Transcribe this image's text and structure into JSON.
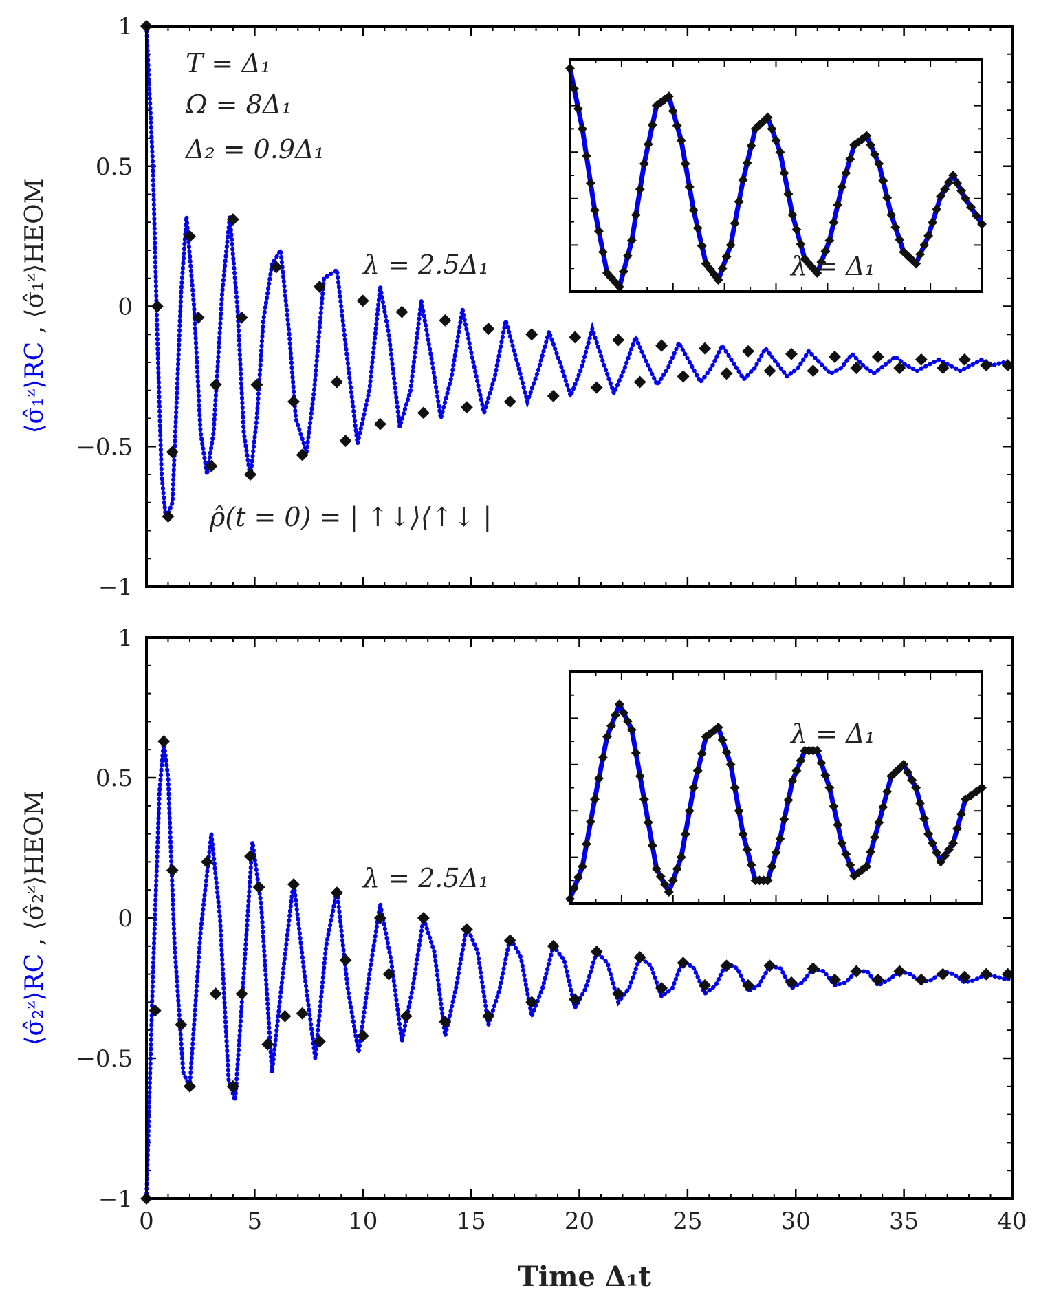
{
  "figure": {
    "xlabel": "Time Δ₁t",
    "colors": {
      "rc": "#0000ee",
      "heom": "#111111",
      "axes": "#000000"
    }
  },
  "chart_data": [
    {
      "type": "line",
      "panel": "top",
      "ylabel_rc": "⟨σ̂₁ᶻ⟩RC",
      "ylabel_sep": " , ",
      "ylabel_heom": "⟨σ̂₁ᶻ⟩HEOM",
      "xlim": [
        0,
        40
      ],
      "ylim": [
        -1,
        1
      ],
      "xticks": [
        0,
        5,
        10,
        15,
        20,
        25,
        30,
        35,
        40
      ],
      "yticks": [
        -1,
        -0.5,
        0,
        0.5,
        1
      ],
      "ytick_labels": [
        "−1",
        "−0.5",
        "0",
        "0.5",
        "1"
      ],
      "annotations": [
        "T = Δ₁",
        "Ω = 8Δ₁",
        "Δ₂ = 0.9Δ₁",
        "λ = 2.5Δ₁",
        "ρ̂(t = 0) = | ↑↓⟩⟨↑↓ |"
      ],
      "series": [
        {
          "style": "dotted-blue",
          "x": [
            0,
            0.3,
            0.5,
            0.7,
            0.9,
            1.2,
            1.6,
            1.85,
            2.2,
            2.5,
            2.8,
            3.1,
            3.5,
            3.85,
            4.2,
            4.5,
            4.8,
            5.1,
            5.4,
            5.8,
            6.2,
            6.6,
            6.9,
            7.4,
            7.75,
            8.2,
            8.8,
            9.3,
            9.75,
            10.3,
            10.8,
            11.2,
            11.7,
            12.2,
            12.7,
            13.2,
            13.6,
            14.1,
            14.6,
            15.1,
            15.6,
            16.1,
            16.6,
            17.2,
            17.6,
            18.1,
            18.6,
            19.1,
            19.6,
            20.1,
            20.6,
            21.1,
            21.6,
            22.1,
            22.6,
            23.1,
            23.6,
            24.1,
            24.6,
            25.1,
            25.6,
            26.1,
            26.6,
            27.1,
            27.6,
            28.1,
            28.6,
            29.1,
            29.6,
            30.1,
            30.6,
            31.1,
            31.6,
            32.1,
            32.6,
            33.1,
            33.6,
            34.1,
            34.6,
            35.1,
            35.6,
            36.1,
            36.6,
            37.1,
            37.6,
            38.1,
            38.6,
            39.1,
            39.6,
            40
          ],
          "y": [
            1,
            0.5,
            -0.1,
            -0.6,
            -0.76,
            -0.7,
            0.05,
            0.32,
            0.0,
            -0.45,
            -0.6,
            -0.45,
            0.05,
            0.32,
            0.0,
            -0.45,
            -0.61,
            -0.4,
            -0.05,
            0.15,
            0.2,
            -0.1,
            -0.4,
            -0.52,
            -0.3,
            0.1,
            0.13,
            -0.2,
            -0.49,
            -0.3,
            0.07,
            -0.1,
            -0.43,
            -0.3,
            0.02,
            -0.2,
            -0.4,
            -0.25,
            -0.01,
            -0.2,
            -0.38,
            -0.25,
            -0.05,
            -0.22,
            -0.34,
            -0.23,
            -0.09,
            -0.2,
            -0.32,
            -0.22,
            -0.08,
            -0.2,
            -0.31,
            -0.22,
            -0.11,
            -0.2,
            -0.28,
            -0.22,
            -0.13,
            -0.2,
            -0.27,
            -0.22,
            -0.14,
            -0.2,
            -0.26,
            -0.22,
            -0.15,
            -0.2,
            -0.25,
            -0.22,
            -0.16,
            -0.2,
            -0.24,
            -0.22,
            -0.17,
            -0.21,
            -0.24,
            -0.21,
            -0.18,
            -0.21,
            -0.23,
            -0.21,
            -0.19,
            -0.21,
            -0.23,
            -0.21,
            -0.19,
            -0.21,
            -0.2,
            -0.21
          ]
        },
        {
          "style": "diamond-black",
          "x": [
            0,
            0.5,
            1.0,
            1.2,
            2.0,
            2.4,
            3.0,
            3.2,
            4.0,
            4.4,
            4.8,
            5.1,
            6.0,
            6.8,
            7.2,
            8.0,
            8.8,
            9.2,
            10.0,
            10.8,
            11.8,
            12.8,
            13.8,
            14.8,
            15.8,
            16.8,
            17.8,
            18.8,
            19.8,
            20.8,
            21.8,
            22.8,
            23.8,
            24.8,
            25.8,
            26.8,
            27.8,
            28.8,
            29.8,
            30.8,
            31.8,
            32.8,
            33.8,
            34.8,
            35.8,
            36.8,
            37.8,
            38.8,
            39.8
          ],
          "y": [
            1,
            0.0,
            -0.75,
            -0.52,
            0.25,
            -0.04,
            -0.57,
            -0.28,
            0.31,
            -0.04,
            -0.6,
            -0.28,
            0.14,
            -0.34,
            -0.53,
            0.07,
            -0.27,
            -0.48,
            0.02,
            -0.42,
            -0.02,
            -0.38,
            -0.05,
            -0.36,
            -0.08,
            -0.34,
            -0.1,
            -0.32,
            -0.11,
            -0.29,
            -0.12,
            -0.27,
            -0.14,
            -0.25,
            -0.15,
            -0.24,
            -0.16,
            -0.23,
            -0.17,
            -0.23,
            -0.18,
            -0.22,
            -0.18,
            -0.22,
            -0.19,
            -0.22,
            -0.19,
            -0.21,
            -0.21
          ]
        }
      ],
      "inset": {
        "label": "λ = Δ₁",
        "x": [
          0,
          0.03,
          0.06,
          0.09,
          0.12,
          0.15,
          0.18,
          0.21,
          0.24,
          0.27,
          0.3,
          0.33,
          0.36,
          0.39,
          0.42,
          0.45,
          0.48,
          0.51,
          0.54,
          0.57,
          0.6,
          0.63,
          0.66,
          0.69,
          0.72,
          0.75,
          0.78,
          0.81,
          0.84,
          0.87,
          0.9,
          0.93,
          0.96,
          1.0
        ],
        "y": [
          0.96,
          0.7,
          0.35,
          0.08,
          0.02,
          0.22,
          0.55,
          0.8,
          0.84,
          0.65,
          0.35,
          0.12,
          0.05,
          0.2,
          0.48,
          0.7,
          0.75,
          0.6,
          0.33,
          0.14,
          0.08,
          0.22,
          0.45,
          0.63,
          0.67,
          0.55,
          0.33,
          0.17,
          0.12,
          0.24,
          0.41,
          0.5,
          0.4,
          0.29
        ]
      }
    },
    {
      "type": "line",
      "panel": "bottom",
      "ylabel_rc": "⟨σ̂₂ᶻ⟩RC",
      "ylabel_sep": " , ",
      "ylabel_heom": "⟨σ̂₂ᶻ⟩HEOM",
      "xlim": [
        0,
        40
      ],
      "ylim": [
        -1,
        1
      ],
      "xticks": [
        0,
        5,
        10,
        15,
        20,
        25,
        30,
        35,
        40
      ],
      "xtick_labels": [
        "0",
        "5",
        "10",
        "15",
        "20",
        "25",
        "30",
        "35",
        "40"
      ],
      "yticks": [
        -1,
        -0.5,
        0,
        0.5,
        1
      ],
      "ytick_labels": [
        "−1",
        "−0.5",
        "0",
        "0.5",
        "1"
      ],
      "annotations": [
        "λ = 2.5Δ₁"
      ],
      "series": [
        {
          "style": "dotted-blue",
          "x": [
            0,
            0.3,
            0.6,
            0.8,
            1.0,
            1.3,
            1.7,
            2.0,
            2.5,
            3.0,
            3.4,
            3.8,
            4.1,
            4.5,
            4.9,
            5.3,
            5.8,
            6.3,
            6.8,
            7.3,
            7.8,
            8.3,
            8.8,
            9.3,
            9.8,
            10.3,
            10.8,
            11.3,
            11.8,
            12.3,
            12.8,
            13.3,
            13.8,
            14.3,
            14.8,
            15.3,
            15.8,
            16.3,
            16.8,
            17.3,
            17.8,
            18.3,
            18.8,
            19.3,
            19.8,
            20.3,
            20.8,
            21.3,
            21.8,
            22.3,
            22.8,
            23.3,
            23.8,
            24.3,
            24.8,
            25.3,
            25.8,
            26.3,
            26.8,
            27.3,
            27.8,
            28.3,
            28.8,
            29.3,
            29.8,
            30.3,
            30.8,
            31.3,
            31.8,
            32.3,
            32.8,
            33.3,
            33.8,
            34.3,
            34.8,
            35.3,
            35.8,
            36.3,
            36.8,
            37.3,
            37.8,
            38.3,
            38.8,
            39.3,
            39.8,
            40
          ],
          "y": [
            -1,
            -0.2,
            0.45,
            0.63,
            0.5,
            -0.1,
            -0.55,
            -0.6,
            -0.05,
            0.3,
            0.0,
            -0.58,
            -0.65,
            -0.2,
            0.27,
            0.05,
            -0.55,
            -0.2,
            0.13,
            -0.2,
            -0.5,
            -0.1,
            0.1,
            -0.25,
            -0.48,
            -0.2,
            0.05,
            -0.15,
            -0.44,
            -0.25,
            0.0,
            -0.12,
            -0.42,
            -0.25,
            -0.03,
            -0.12,
            -0.38,
            -0.26,
            -0.07,
            -0.14,
            -0.35,
            -0.25,
            -0.1,
            -0.15,
            -0.32,
            -0.25,
            -0.12,
            -0.16,
            -0.3,
            -0.25,
            -0.14,
            -0.17,
            -0.28,
            -0.25,
            -0.15,
            -0.18,
            -0.27,
            -0.24,
            -0.16,
            -0.18,
            -0.26,
            -0.24,
            -0.17,
            -0.18,
            -0.25,
            -0.23,
            -0.18,
            -0.19,
            -0.24,
            -0.23,
            -0.19,
            -0.19,
            -0.24,
            -0.22,
            -0.19,
            -0.2,
            -0.23,
            -0.22,
            -0.19,
            -0.2,
            -0.23,
            -0.22,
            -0.2,
            -0.21,
            -0.22,
            -0.2
          ]
        },
        {
          "style": "diamond-black",
          "x": [
            0,
            0.4,
            0.8,
            1.2,
            1.6,
            2.0,
            2.8,
            3.2,
            4.0,
            4.4,
            4.8,
            5.2,
            5.6,
            6.4,
            6.8,
            7.2,
            8.0,
            8.8,
            9.2,
            10.0,
            10.8,
            11.2,
            12.0,
            12.8,
            13.8,
            14.8,
            15.8,
            16.8,
            17.8,
            18.8,
            19.8,
            20.8,
            21.8,
            22.8,
            23.8,
            24.8,
            25.8,
            26.8,
            27.8,
            28.8,
            29.8,
            30.8,
            31.8,
            32.8,
            33.8,
            34.8,
            35.8,
            36.8,
            37.8,
            38.8,
            39.8
          ],
          "y": [
            -1,
            -0.33,
            0.63,
            0.17,
            -0.38,
            -0.6,
            0.2,
            -0.27,
            -0.6,
            -0.27,
            0.22,
            0.11,
            -0.45,
            -0.35,
            0.12,
            -0.34,
            -0.44,
            0.09,
            -0.15,
            -0.42,
            0.0,
            -0.2,
            -0.35,
            0.0,
            -0.37,
            -0.04,
            -0.35,
            -0.08,
            -0.3,
            -0.1,
            -0.29,
            -0.12,
            -0.27,
            -0.14,
            -0.25,
            -0.16,
            -0.24,
            -0.17,
            -0.24,
            -0.17,
            -0.23,
            -0.18,
            -0.22,
            -0.19,
            -0.22,
            -0.19,
            -0.22,
            -0.2,
            -0.21,
            -0.2,
            -0.2
          ]
        }
      ],
      "inset": {
        "label": "λ = Δ₁",
        "x": [
          0,
          0.03,
          0.06,
          0.09,
          0.12,
          0.15,
          0.18,
          0.21,
          0.24,
          0.27,
          0.3,
          0.33,
          0.36,
          0.39,
          0.42,
          0.45,
          0.48,
          0.51,
          0.54,
          0.57,
          0.6,
          0.63,
          0.66,
          0.69,
          0.72,
          0.75,
          0.78,
          0.81,
          0.84,
          0.87,
          0.9,
          0.93,
          0.96,
          1.0
        ],
        "y": [
          0.02,
          0.16,
          0.45,
          0.72,
          0.86,
          0.75,
          0.45,
          0.15,
          0.05,
          0.2,
          0.5,
          0.72,
          0.76,
          0.6,
          0.3,
          0.1,
          0.1,
          0.28,
          0.53,
          0.66,
          0.66,
          0.5,
          0.26,
          0.12,
          0.16,
          0.35,
          0.55,
          0.6,
          0.5,
          0.3,
          0.18,
          0.26,
          0.45,
          0.5
        ]
      }
    }
  ]
}
